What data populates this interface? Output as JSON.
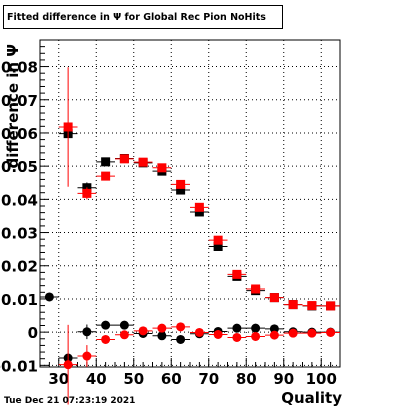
{
  "title": "Fitted difference in  Ψ  for Global Rec Pion NoHits",
  "timestamp": "Tue Dec 21 07:23:19 2021",
  "chart_data": {
    "type": "scatter",
    "xlabel": "Quality",
    "ylabel": "difference in Ψ",
    "xlim": [
      25,
      105
    ],
    "ylim": [
      -0.0105,
      0.088
    ],
    "xticks": [
      30,
      40,
      50,
      60,
      70,
      80,
      90,
      100
    ],
    "yticks": [
      -0.01,
      0,
      0.01,
      0.02,
      0.03,
      0.04,
      0.05,
      0.06,
      0.07,
      0.08
    ],
    "ytick_labels": [
      "-0.01",
      "0",
      "0.01",
      "0.02",
      "0.03",
      "0.04",
      "0.05",
      "0.06",
      "0.07",
      "0.08"
    ],
    "grid": true,
    "series": [
      {
        "marker": "square",
        "color": "#000000",
        "x": [
          32.5,
          37.5,
          42.5,
          47.5,
          52.5,
          57.5,
          62.5,
          67.5,
          72.5,
          77.5,
          82.5,
          87.5,
          92.5,
          97.5,
          102.5
        ],
        "y": [
          0.0598,
          0.0435,
          0.0513,
          0.0523,
          0.051,
          0.0485,
          0.0428,
          0.0362,
          0.0258,
          0.0168,
          0.0125,
          0.0104,
          0.0083,
          0.0079,
          0.0079
        ],
        "yerr": [
          0.0008,
          0.0016,
          0.0007,
          0.0004,
          0.0004,
          0.0004,
          0.0005,
          0.0006,
          0.0007,
          0.0005,
          0.0004,
          0.0004,
          0.0003,
          0.0003,
          0.0003
        ]
      },
      {
        "marker": "square",
        "color": "#ff0000",
        "x": [
          32.5,
          37.5,
          42.5,
          47.5,
          52.5,
          57.5,
          62.5,
          67.5,
          72.5,
          77.5,
          82.5,
          87.5,
          92.5,
          97.5,
          102.5
        ],
        "y": [
          0.0618,
          0.0418,
          0.047,
          0.0522,
          0.0512,
          0.0495,
          0.0445,
          0.0376,
          0.0277,
          0.0174,
          0.013,
          0.0104,
          0.0083,
          0.008,
          0.0079
        ],
        "yerr": [
          0.018,
          0.0018,
          0.0008,
          0.0004,
          0.0004,
          0.0004,
          0.0005,
          0.0006,
          0.0007,
          0.0005,
          0.0004,
          0.0004,
          0.0003,
          0.0003,
          0.0003
        ]
      },
      {
        "marker": "circle",
        "color": "#000000",
        "x": [
          27.5,
          32.5,
          37.5,
          42.5,
          47.5,
          52.5,
          57.5,
          62.5,
          67.5,
          72.5,
          77.5,
          82.5,
          87.5,
          92.5,
          97.5,
          102.5
        ],
        "y": [
          0.0106,
          -0.0078,
          0.0001,
          0.0021,
          0.0021,
          -0.0004,
          -0.0011,
          -0.0022,
          -0.0005,
          0.0002,
          0.0012,
          0.0012,
          0.001,
          0.0001,
          0.0,
          0.0
        ],
        "yerr": [
          0.0002,
          0.0012,
          0.0022,
          0.0011,
          0.0007,
          0.0006,
          0.0006,
          0.0006,
          0.0006,
          0.0006,
          0.0005,
          0.0004,
          0.0004,
          0.0003,
          0.0003,
          0.0003
        ]
      },
      {
        "marker": "circle",
        "color": "#ff0000",
        "x": [
          32.5,
          37.5,
          42.5,
          47.5,
          52.5,
          57.5,
          62.5,
          67.5,
          72.5,
          77.5,
          82.5,
          87.5,
          92.5,
          97.5,
          102.5
        ],
        "y": [
          -0.0098,
          -0.0072,
          -0.0022,
          -0.0008,
          0.0004,
          0.0012,
          0.0016,
          -0.0001,
          -0.0007,
          -0.0016,
          -0.0013,
          -0.0009,
          -0.0003,
          -0.0003,
          -0.0001
        ],
        "yerr": [
          0.012,
          0.0033,
          0.0012,
          0.0007,
          0.0006,
          0.0006,
          0.0006,
          0.0006,
          0.0006,
          0.0005,
          0.0004,
          0.0004,
          0.0003,
          0.0003,
          0.0003
        ]
      }
    ]
  }
}
